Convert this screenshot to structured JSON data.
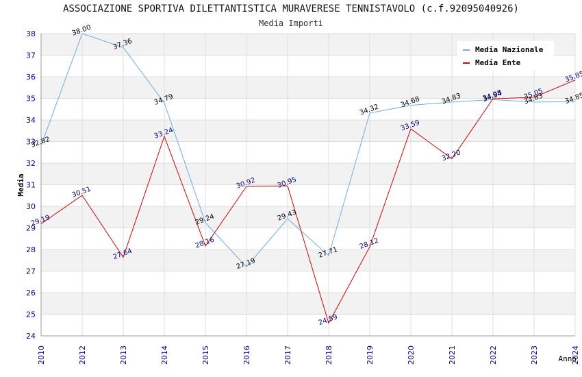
{
  "chart_data": {
    "type": "line",
    "title": "ASSOCIAZIONE SPORTIVA DILETTANTISTICA MURAVERESE TENNISTAVOLO (c.f.92095040926)",
    "subtitle": "Media Importi",
    "ylabel": "Media",
    "xlabel": "Anno",
    "ylim": [
      24,
      38
    ],
    "yticks": [
      24,
      25,
      26,
      27,
      28,
      29,
      30,
      31,
      32,
      33,
      34,
      35,
      36,
      37,
      38
    ],
    "categories": [
      "2010",
      "2012",
      "2013",
      "2014",
      "2015",
      "2016",
      "2017",
      "2018",
      "2019",
      "2020",
      "2021",
      "2022",
      "2023",
      "2024"
    ],
    "series": [
      {
        "name": "Media Nazionale",
        "color": "#6aaee8",
        "label_color": "#000000",
        "values": [
          32.82,
          38.0,
          37.36,
          34.79,
          29.24,
          27.19,
          29.43,
          27.71,
          34.32,
          34.68,
          34.83,
          34.94,
          34.83,
          34.85
        ],
        "labels": [
          "32.82",
          "38.00",
          "37.36",
          "34.79",
          "29.24",
          "27.19",
          "29.43",
          "27.71",
          "34.32",
          "34.68",
          "34.83",
          "34.94",
          "34.83",
          "34.85"
        ]
      },
      {
        "name": "Media Ente",
        "color": "#e00000",
        "label_color": "#000080",
        "values": [
          29.19,
          30.51,
          27.64,
          33.24,
          28.16,
          30.92,
          30.95,
          24.59,
          28.12,
          33.59,
          32.2,
          34.98,
          35.05,
          35.85
        ],
        "labels": [
          "29.19",
          "30.51",
          "27.64",
          "33.24",
          "28.16",
          "30.92",
          "30.95",
          "24.59",
          "28.12",
          "33.59",
          "32.20",
          "34.98",
          "35.05",
          "35.85"
        ]
      }
    ],
    "grid": true,
    "legend": "top-right"
  }
}
